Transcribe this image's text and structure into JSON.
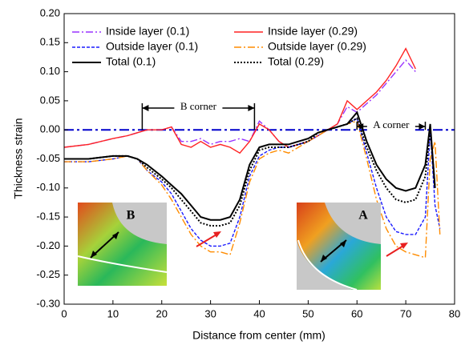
{
  "chart_data": {
    "type": "line",
    "xlabel": "Distance from center (mm)",
    "ylabel": "Thickness strain",
    "x": [
      0,
      5,
      10,
      13,
      15,
      17,
      20,
      22,
      24,
      26,
      28,
      30,
      32,
      34,
      36,
      38,
      40,
      42,
      44,
      46,
      48,
      50,
      52,
      54,
      56,
      58,
      60,
      62,
      64,
      66,
      68,
      70,
      72,
      74,
      75,
      76,
      77
    ],
    "series": [
      {
        "name": "Inside layer (0.1)",
        "color": "#9933ff",
        "dash": "dashdot",
        "values": [
          -0.03,
          -0.025,
          -0.015,
          -0.01,
          -0.005,
          0,
          0,
          0.005,
          -0.02,
          -0.02,
          -0.015,
          -0.025,
          -0.02,
          -0.02,
          -0.015,
          -0.02,
          0.015,
          0,
          -0.02,
          -0.03,
          -0.025,
          -0.02,
          -0.01,
          0,
          0.01,
          0.04,
          0.03,
          0.045,
          0.06,
          0.08,
          0.1,
          0.12,
          0.1,
          null,
          null,
          null,
          null
        ]
      },
      {
        "name": "Inside layer (0.29)",
        "color": "#ff2222",
        "dash": "solid",
        "values": [
          -0.03,
          -0.025,
          -0.015,
          -0.01,
          -0.005,
          0,
          0,
          0.005,
          -0.025,
          -0.03,
          -0.02,
          -0.03,
          -0.025,
          -0.03,
          -0.04,
          -0.02,
          0.01,
          0,
          -0.02,
          -0.03,
          -0.025,
          -0.02,
          -0.01,
          0,
          0.01,
          0.05,
          0.035,
          0.05,
          0.065,
          0.085,
          0.11,
          0.14,
          0.105,
          null,
          null,
          null,
          null
        ]
      },
      {
        "name": "Outside layer (0.1)",
        "color": "#1a1aff",
        "dash": "dash",
        "values": [
          -0.055,
          -0.055,
          -0.05,
          -0.045,
          -0.05,
          -0.07,
          -0.09,
          -0.11,
          -0.14,
          -0.17,
          -0.19,
          -0.2,
          -0.2,
          -0.195,
          -0.15,
          -0.08,
          -0.045,
          -0.035,
          -0.03,
          -0.03,
          -0.025,
          -0.02,
          -0.01,
          0,
          0.005,
          0.01,
          0.02,
          -0.04,
          -0.1,
          -0.15,
          -0.175,
          -0.18,
          -0.18,
          -0.15,
          0,
          -0.13,
          -0.17
        ]
      },
      {
        "name": "Outside layer (0.29)",
        "color": "#ff8c00",
        "dash": "dashdot",
        "values": [
          -0.055,
          -0.055,
          -0.05,
          -0.045,
          -0.05,
          -0.07,
          -0.095,
          -0.12,
          -0.15,
          -0.18,
          -0.2,
          -0.21,
          -0.21,
          -0.215,
          -0.16,
          -0.09,
          -0.05,
          -0.04,
          -0.035,
          -0.04,
          -0.03,
          -0.02,
          -0.01,
          0,
          0.005,
          0.01,
          0.015,
          -0.05,
          -0.12,
          -0.17,
          -0.2,
          -0.21,
          -0.215,
          -0.22,
          -0.05,
          -0.02,
          -0.18
        ]
      },
      {
        "name": "Total (0.1)",
        "color": "#000000",
        "dash": "solid",
        "values": [
          -0.05,
          -0.05,
          -0.045,
          -0.045,
          -0.05,
          -0.06,
          -0.08,
          -0.095,
          -0.11,
          -0.13,
          -0.15,
          -0.155,
          -0.155,
          -0.15,
          -0.12,
          -0.06,
          -0.03,
          -0.025,
          -0.025,
          -0.025,
          -0.02,
          -0.015,
          -0.005,
          0,
          0.005,
          0.01,
          0.03,
          -0.02,
          -0.06,
          -0.085,
          -0.1,
          -0.105,
          -0.1,
          -0.06,
          0.01,
          -0.1,
          null
        ]
      },
      {
        "name": "Total (0.29)",
        "color": "#000000",
        "dash": "dotted",
        "values": [
          -0.05,
          -0.05,
          -0.045,
          -0.045,
          -0.05,
          -0.065,
          -0.085,
          -0.1,
          -0.12,
          -0.14,
          -0.16,
          -0.165,
          -0.165,
          -0.16,
          -0.13,
          -0.07,
          -0.035,
          -0.03,
          -0.03,
          -0.03,
          -0.025,
          -0.02,
          -0.005,
          0,
          0.005,
          0.01,
          0.02,
          -0.03,
          -0.07,
          -0.1,
          -0.12,
          -0.125,
          -0.12,
          -0.08,
          0,
          -0.1,
          null
        ]
      }
    ],
    "reference_line": {
      "y": 0,
      "color": "#0000cc"
    },
    "annotations": [
      "B corner",
      "A corner"
    ],
    "inset_labels": [
      "B",
      "A"
    ],
    "legend": "top-left",
    "xlim": [
      0,
      80
    ],
    "xticks": [
      0,
      10,
      20,
      30,
      40,
      50,
      60,
      70,
      80
    ],
    "ylim": [
      -0.3,
      0.2
    ],
    "yticks": [
      {
        "value": 0.2,
        "label": "0.20"
      },
      {
        "value": 0.15,
        "label": "0.15"
      },
      {
        "value": 0.1,
        "label": "0.10"
      },
      {
        "value": 0.05,
        "label": "0.05"
      },
      {
        "value": 0,
        "label": "0.00"
      },
      {
        "value": -0.05,
        "label": "-0.05"
      },
      {
        "value": -0.1,
        "label": "-0.10"
      },
      {
        "value": -0.15,
        "label": "-0.15"
      },
      {
        "value": -0.2,
        "label": "-0.20"
      },
      {
        "value": -0.25,
        "label": "-0.25"
      },
      {
        "value": -0.3,
        "label": "-0.30"
      }
    ]
  }
}
